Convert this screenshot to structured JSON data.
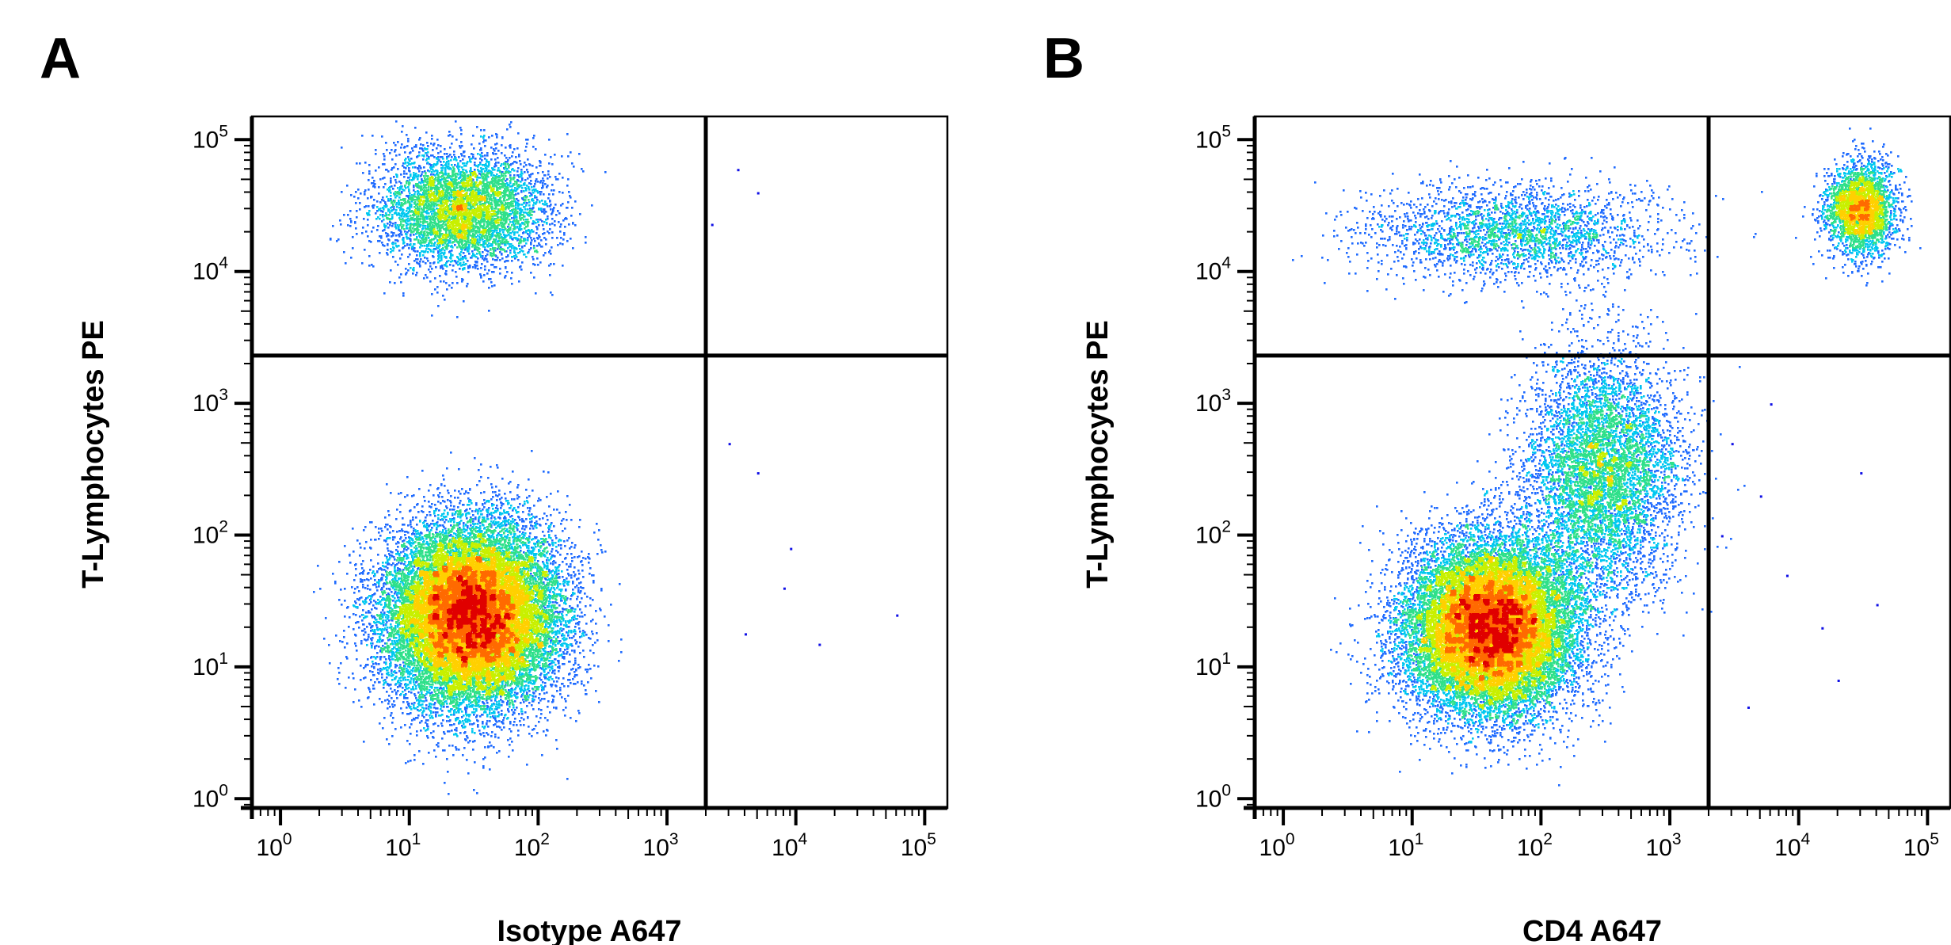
{
  "panels": [
    {
      "letter": "A"
    },
    {
      "letter": "B"
    }
  ],
  "colors": {
    "density_scale": [
      "#1010e6",
      "#1f6bff",
      "#00c8f0",
      "#2fe08a",
      "#c8f000",
      "#ffd000",
      "#ff6a00",
      "#e00000"
    ],
    "frame": "#000000",
    "gate_lines": "#000000"
  },
  "chart_data": [
    {
      "type": "scatter",
      "subtype": "flow-cytometry density dot plot",
      "title": "",
      "xlabel": "Isotype A647",
      "ylabel": "T-Lymphocytes PE",
      "x_scale": "log",
      "y_scale": "log",
      "xlim": [
        0.6,
        150000
      ],
      "ylim": [
        0.85,
        150000
      ],
      "x_ticks": [
        {
          "base": "10",
          "exp": "0",
          "value": 1
        },
        {
          "base": "10",
          "exp": "1",
          "value": 10
        },
        {
          "base": "10",
          "exp": "2",
          "value": 100
        },
        {
          "base": "10",
          "exp": "3",
          "value": 1000
        },
        {
          "base": "10",
          "exp": "4",
          "value": 10000
        },
        {
          "base": "10",
          "exp": "5",
          "value": 100000
        }
      ],
      "y_ticks": [
        {
          "base": "10",
          "exp": "0",
          "value": 1
        },
        {
          "base": "10",
          "exp": "1",
          "value": 10
        },
        {
          "base": "10",
          "exp": "2",
          "value": 100
        },
        {
          "base": "10",
          "exp": "3",
          "value": 1000
        },
        {
          "base": "10",
          "exp": "4",
          "value": 10000
        },
        {
          "base": "10",
          "exp": "5",
          "value": 100000
        }
      ],
      "quadrant_gates": {
        "x": 2000,
        "y": 2300
      },
      "grid": false,
      "legend": "none",
      "populations": [
        {
          "center": [
            30,
            25
          ],
          "spread": [
            0.33,
            0.34
          ],
          "count": 22000,
          "peak_color": "red"
        },
        {
          "center": [
            25,
            30000
          ],
          "spread": [
            0.32,
            0.22
          ],
          "count": 5200,
          "peak_color": "cyan"
        },
        {
          "sparse_points": [
            [
              2200,
              23000
            ],
            [
              3500,
              60000
            ],
            [
              5000,
              40000
            ],
            [
              3000,
              500
            ],
            [
              5000,
              300
            ],
            [
              9000,
              80
            ],
            [
              15000,
              15
            ],
            [
              60000,
              25
            ],
            [
              8000,
              40
            ],
            [
              4000,
              18
            ]
          ]
        }
      ]
    },
    {
      "type": "scatter",
      "subtype": "flow-cytometry density dot plot",
      "title": "",
      "xlabel": "CD4 A647",
      "ylabel": "T-Lymphocytes PE",
      "x_scale": "log",
      "y_scale": "log",
      "xlim": [
        0.6,
        150000
      ],
      "ylim": [
        0.85,
        150000
      ],
      "x_ticks": [
        {
          "base": "10",
          "exp": "0",
          "value": 1
        },
        {
          "base": "10",
          "exp": "1",
          "value": 10
        },
        {
          "base": "10",
          "exp": "2",
          "value": 100
        },
        {
          "base": "10",
          "exp": "3",
          "value": 1000
        },
        {
          "base": "10",
          "exp": "4",
          "value": 10000
        },
        {
          "base": "10",
          "exp": "5",
          "value": 100000
        }
      ],
      "y_ticks": [
        {
          "base": "10",
          "exp": "0",
          "value": 1
        },
        {
          "base": "10",
          "exp": "1",
          "value": 10
        },
        {
          "base": "10",
          "exp": "2",
          "value": 100
        },
        {
          "base": "10",
          "exp": "3",
          "value": 1000
        },
        {
          "base": "10",
          "exp": "4",
          "value": 10000
        },
        {
          "base": "10",
          "exp": "5",
          "value": 100000
        }
      ],
      "quadrant_gates": {
        "x": 2000,
        "y": 2300
      },
      "grid": false,
      "legend": "none",
      "populations": [
        {
          "center": [
            40,
            20
          ],
          "spread": [
            0.32,
            0.32
          ],
          "count": 20000,
          "peak_color": "red"
        },
        {
          "center": [
            300,
            300
          ],
          "spread": [
            0.3,
            0.45
          ],
          "count": 6000,
          "peak_color": "cyan"
        },
        {
          "center": [
            30000,
            30000
          ],
          "spread": [
            0.13,
            0.17
          ],
          "count": 3000,
          "peak_color": "green"
        },
        {
          "center": [
            60,
            20000
          ],
          "spread": [
            0.55,
            0.18
          ],
          "count": 2500,
          "peak_color": "blue"
        },
        {
          "sparse_points": [
            [
              3000,
              500
            ],
            [
              5000,
              200
            ],
            [
              8000,
              50
            ],
            [
              15000,
              20
            ],
            [
              4000,
              5
            ],
            [
              20000,
              8
            ],
            [
              2500,
              100
            ],
            [
              6000,
              1000
            ],
            [
              30000,
              300
            ],
            [
              40000,
              30
            ]
          ]
        }
      ]
    }
  ]
}
